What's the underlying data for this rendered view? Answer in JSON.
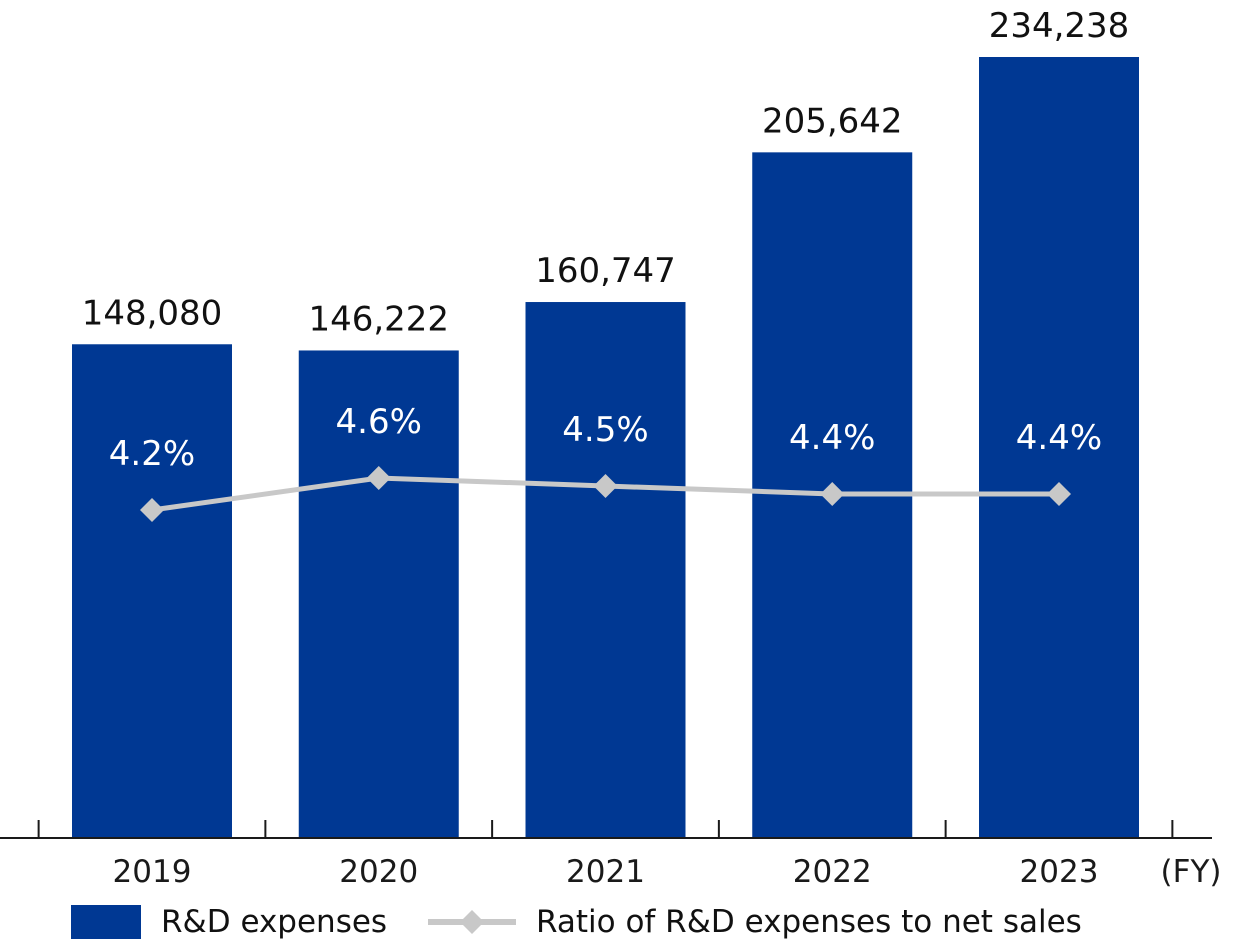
{
  "colors": {
    "bar": "#003893",
    "line": "#c8c8c8",
    "axis": "#1a1a1a",
    "bar_label": "#111111",
    "ratio_label": "#ffffff"
  },
  "chart_data": {
    "type": "bar",
    "categories": [
      "2019",
      "2020",
      "2021",
      "2022",
      "2023"
    ],
    "x_unit_label": "(FY)",
    "series": [
      {
        "name": "R&D expenses",
        "type": "bar",
        "values": [
          148080,
          146222,
          160747,
          205642,
          234238
        ],
        "labels": [
          "148,080",
          "146,222",
          "160,747",
          "205,642",
          "234,238"
        ]
      },
      {
        "name": "Ratio of R&D expenses to net sales",
        "type": "line",
        "values": [
          4.2,
          4.6,
          4.5,
          4.4,
          4.4
        ],
        "labels": [
          "4.2%",
          "4.6%",
          "4.5%",
          "4.4%",
          "4.4%"
        ]
      }
    ],
    "grid": false,
    "legend_position": "bottom"
  }
}
